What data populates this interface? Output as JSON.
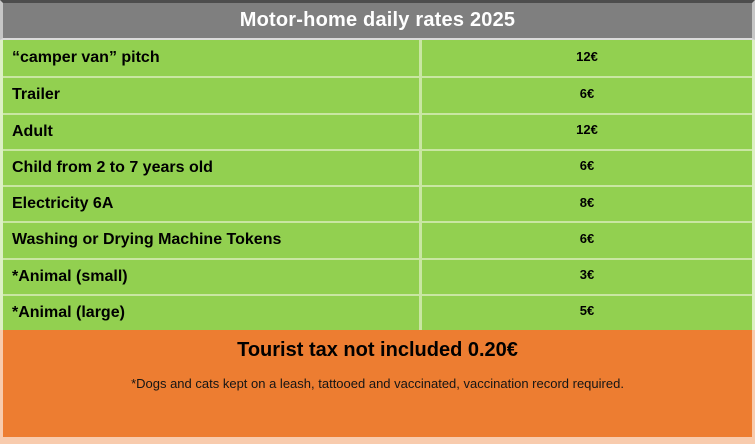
{
  "header": {
    "title": "Motor-home daily rates 2025"
  },
  "table": {
    "rows": [
      {
        "label": "“camper van” pitch",
        "price": "12€"
      },
      {
        "label": "Trailer",
        "price": "6€"
      },
      {
        "label": "Adult",
        "price": "12€"
      },
      {
        "label": "Child from 2 to 7 years old",
        "price": "6€"
      },
      {
        "label": "Electricity 6A",
        "price": "8€"
      },
      {
        "label": "Washing or Drying Machine Tokens",
        "price": "6€"
      },
      {
        "label": "*Animal (small)",
        "price": "3€"
      },
      {
        "label": "*Animal (large)",
        "price": "5€"
      }
    ]
  },
  "footer": {
    "title": "Tourist tax not included 0.20€",
    "note": "*Dogs and cats kept on a leash, tattooed and vaccinated, vaccination record required."
  },
  "colors": {
    "header_bg": "#7F7F7F",
    "header_text": "#FFFFFF",
    "row_bg": "#92D050",
    "row_divider": "#C9E6A2",
    "row_edge": "#DCF0C4",
    "footer_bg": "#ED7D31",
    "footer_edge": "#F8CBAD",
    "body_text": "#000000",
    "top_border": "#4D4D4D"
  }
}
